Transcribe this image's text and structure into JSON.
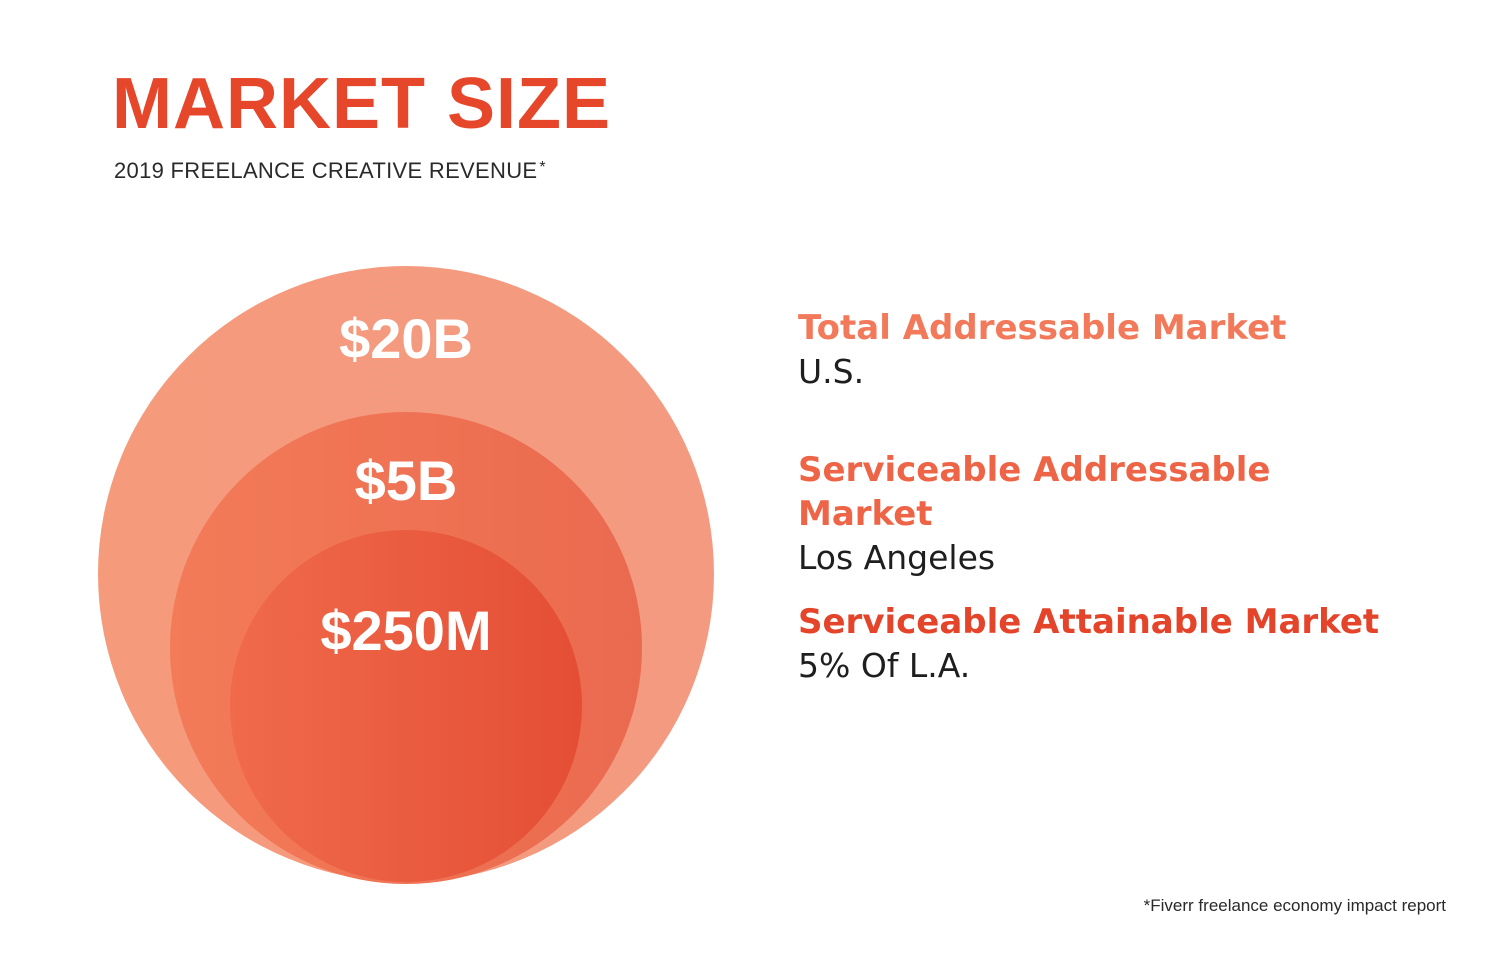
{
  "title": "MARKET SIZE",
  "subtitle": "2019 FREELANCE CREATIVE REVENUE",
  "subtitle_mark": "*",
  "colors": {
    "title": "#e6472b",
    "tam_circle": "#f4957a",
    "sam_circle": "#ee7352",
    "som_circle": "#e5533a",
    "tam_heading": "#f2795a",
    "sam_heading": "#ee6447",
    "som_heading": "#e4442a"
  },
  "circles": {
    "tam": {
      "value": "$20B"
    },
    "sam": {
      "value": "$5B"
    },
    "som": {
      "value": "$250M"
    }
  },
  "legend": {
    "tam": {
      "heading": "Total Addressable Market",
      "desc": "U.S."
    },
    "sam": {
      "heading": "Serviceable Addressable Market",
      "desc": "Los Angeles"
    },
    "som": {
      "heading": "Serviceable Attainable Market",
      "desc": "5% Of L.A."
    }
  },
  "footnote": "*Fiverr freelance economy impact report"
}
